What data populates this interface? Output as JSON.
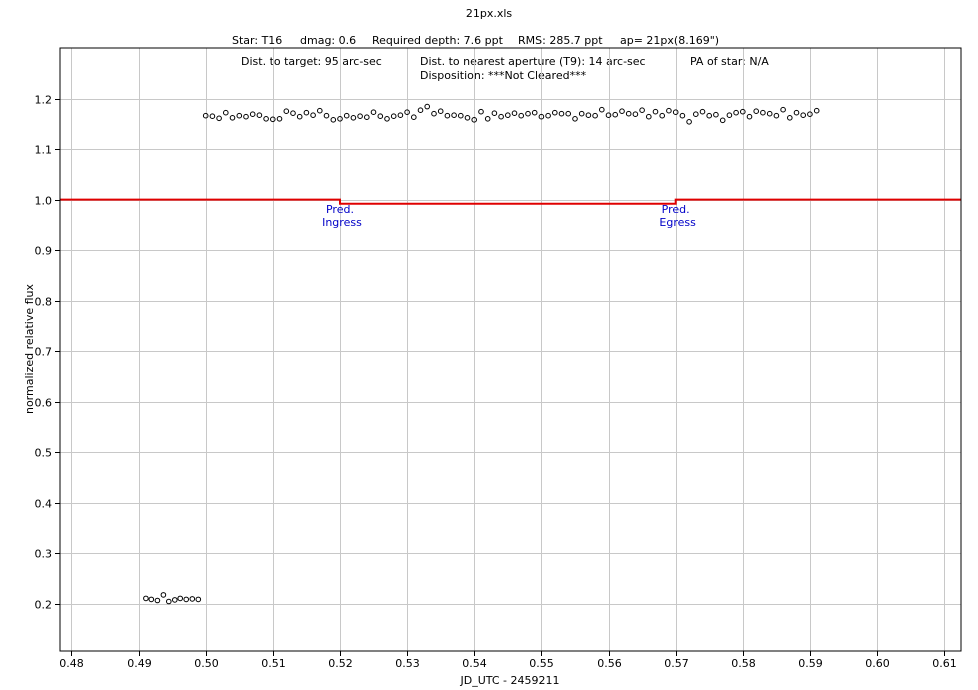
{
  "chart_data": {
    "type": "scatter",
    "title": "21px.xls",
    "info_row1": [
      "Star: T16",
      "dmag: 0.6",
      "Required depth: 7.6 ppt",
      "RMS: 285.7 ppt",
      "ap= 21px(8.169\")"
    ],
    "info_row2": [
      "Dist. to target: 95 arc-sec",
      "Dist. to nearest aperture (T9): 14 arc-sec",
      "PA of star: N/A"
    ],
    "info_row3": [
      "Disposition: ***Not Cleared***"
    ],
    "xlabel": "JD_UTC - 2459211",
    "ylabel": "normalized relative flux",
    "xlim": [
      0.4783,
      0.6125
    ],
    "ylim": [
      0.107,
      1.3
    ],
    "x_ticks": [
      0.48,
      0.49,
      0.5,
      0.51,
      0.52,
      0.53,
      0.54,
      0.55,
      0.56,
      0.57,
      0.58,
      0.59,
      0.6,
      0.61
    ],
    "x_tick_labels": [
      "0.48",
      "0.49",
      "0.50",
      "0.51",
      "0.52",
      "0.53",
      "0.54",
      "0.55",
      "0.56",
      "0.57",
      "0.58",
      "0.59",
      "0.60",
      "0.61"
    ],
    "y_ticks": [
      0.2,
      0.3,
      0.4,
      0.5,
      0.6,
      0.7,
      0.8,
      0.9,
      1.0,
      1.1,
      1.2
    ],
    "y_tick_labels": [
      "0.2",
      "0.3",
      "0.4",
      "0.5",
      "0.6",
      "0.7",
      "0.8",
      "0.9",
      "1.0",
      "1.1",
      "1.2"
    ],
    "grid": true,
    "model_color": "#e00000",
    "point_color": "#000000",
    "model": {
      "x": [
        0.4783,
        0.52,
        0.52,
        0.57,
        0.57,
        0.6125
      ],
      "y": [
        1.0,
        1.0,
        0.992,
        0.992,
        1.0,
        1.0
      ]
    },
    "annotations": [
      {
        "line1": "Pred.",
        "line2": "Ingress",
        "x": 0.52,
        "y": 0.96
      },
      {
        "line1": "Pred.",
        "line2": "Egress",
        "x": 0.57,
        "y": 0.96
      }
    ],
    "series": [
      {
        "x": [
          0.4911,
          0.4919,
          0.4928,
          0.4937,
          0.4945,
          0.4954,
          0.4962,
          0.4971,
          0.498,
          0.4989
        ],
        "y": [
          0.211,
          0.209,
          0.207,
          0.218,
          0.205,
          0.208,
          0.211,
          0.209,
          0.21,
          0.209
        ]
      },
      {
        "x": [
          0.5,
          0.501,
          0.502,
          0.503,
          0.504,
          0.505,
          0.506,
          0.507,
          0.508,
          0.509,
          0.51,
          0.511,
          0.512,
          0.513,
          0.514,
          0.515,
          0.516,
          0.517,
          0.518,
          0.519,
          0.52,
          0.521,
          0.522,
          0.523,
          0.524,
          0.525,
          0.526,
          0.527,
          0.528,
          0.529,
          0.53,
          0.531,
          0.532,
          0.533,
          0.534,
          0.535,
          0.536,
          0.537,
          0.538,
          0.539,
          0.54,
          0.541,
          0.542,
          0.543,
          0.544,
          0.545,
          0.546,
          0.547,
          0.548,
          0.549,
          0.55,
          0.551,
          0.552,
          0.553,
          0.554,
          0.555,
          0.556,
          0.557,
          0.558,
          0.559,
          0.56,
          0.561,
          0.562,
          0.563,
          0.564,
          0.565,
          0.566,
          0.567,
          0.568,
          0.569,
          0.57,
          0.571,
          0.572,
          0.573,
          0.574,
          0.575,
          0.576,
          0.577,
          0.578,
          0.579,
          0.58,
          0.581,
          0.582,
          0.583,
          0.584,
          0.585,
          0.586,
          0.587,
          0.588,
          0.589,
          0.59,
          0.591
        ],
        "y": [
          1.166,
          1.165,
          1.161,
          1.172,
          1.162,
          1.166,
          1.164,
          1.169,
          1.167,
          1.16,
          1.159,
          1.16,
          1.175,
          1.171,
          1.164,
          1.172,
          1.167,
          1.176,
          1.166,
          1.158,
          1.16,
          1.166,
          1.162,
          1.165,
          1.163,
          1.173,
          1.165,
          1.16,
          1.165,
          1.167,
          1.173,
          1.163,
          1.177,
          1.184,
          1.17,
          1.175,
          1.166,
          1.167,
          1.166,
          1.162,
          1.158,
          1.174,
          1.16,
          1.171,
          1.164,
          1.167,
          1.171,
          1.166,
          1.17,
          1.172,
          1.164,
          1.166,
          1.172,
          1.17,
          1.17,
          1.16,
          1.17,
          1.167,
          1.166,
          1.178,
          1.167,
          1.168,
          1.175,
          1.17,
          1.169,
          1.177,
          1.164,
          1.174,
          1.166,
          1.176,
          1.173,
          1.166,
          1.154,
          1.169,
          1.174,
          1.166,
          1.168,
          1.157,
          1.167,
          1.172,
          1.174,
          1.164,
          1.175,
          1.172,
          1.17,
          1.166,
          1.178,
          1.162,
          1.172,
          1.167,
          1.169,
          1.176
        ]
      }
    ]
  }
}
